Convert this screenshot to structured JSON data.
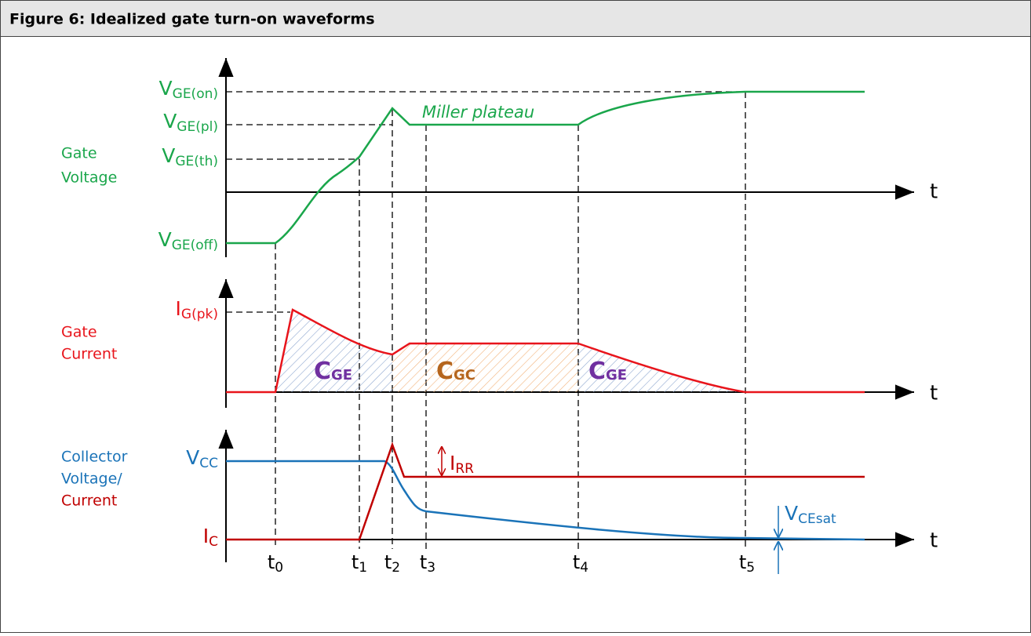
{
  "header": {
    "title": "Figure 6: Idealized gate turn-on waveforms"
  },
  "panels": [
    {
      "label": [
        "Gate",
        "Voltage"
      ],
      "axis": "t",
      "levels": [
        {
          "main": "V",
          "sub": "GE(on)"
        },
        {
          "main": "V",
          "sub": "GE(pl)"
        },
        {
          "main": "V",
          "sub": "GE(th)"
        },
        {
          "main": "V",
          "sub": "GE(off)"
        }
      ],
      "annotation": "Miller plateau"
    },
    {
      "label": [
        "Gate",
        "Current"
      ],
      "axis": "t",
      "levels": [
        {
          "main": "I",
          "sub": "G(pk)"
        }
      ],
      "regions": [
        {
          "main": "C",
          "sub": "GE"
        },
        {
          "main": "C",
          "sub": "GC"
        },
        {
          "main": "C",
          "sub": "GE"
        }
      ]
    },
    {
      "label": [
        "Collector",
        "Voltage/",
        "Current"
      ],
      "axis": "t",
      "levels": [
        {
          "main": "V",
          "sub": "CC"
        },
        {
          "main": "I",
          "sub": "C"
        }
      ],
      "annotations": [
        {
          "main": "I",
          "sub": "RR"
        },
        {
          "main": "V",
          "sub": "CEsat"
        }
      ]
    }
  ],
  "times": [
    {
      "main": "t",
      "sub": "0"
    },
    {
      "main": "t",
      "sub": "1"
    },
    {
      "main": "t",
      "sub": "2"
    },
    {
      "main": "t",
      "sub": "3"
    },
    {
      "main": "t",
      "sub": "4"
    },
    {
      "main": "t",
      "sub": "5"
    }
  ]
}
